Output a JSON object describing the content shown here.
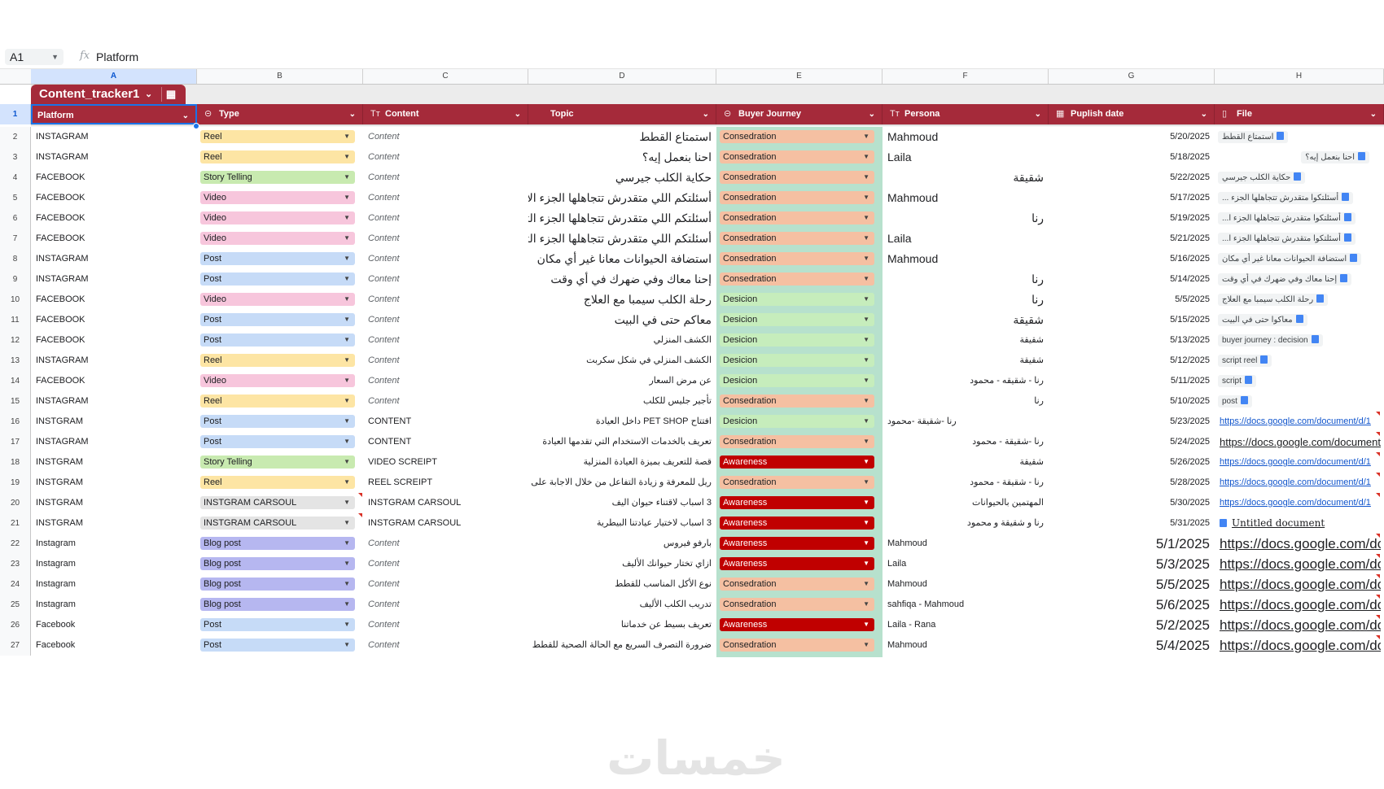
{
  "formula_bar": {
    "cell_ref": "A1",
    "fx": "fx",
    "value": "Platform"
  },
  "columns": [
    "A",
    "B",
    "C",
    "D",
    "E",
    "F",
    "G",
    "H"
  ],
  "table": {
    "name": "Content_tracker1"
  },
  "headers": [
    {
      "label": "Platform",
      "icon": ""
    },
    {
      "label": "Type",
      "icon": "⊝"
    },
    {
      "label": "Content",
      "icon": "Tт"
    },
    {
      "label": "Topic",
      "icon": ""
    },
    {
      "label": "Buyer Journey",
      "icon": "⊝"
    },
    {
      "label": "Persona",
      "icon": "Tт"
    },
    {
      "label": "Puplish date",
      "icon": "▦"
    },
    {
      "label": "File",
      "icon": "▯"
    }
  ],
  "chip_colors": {
    "Reel": "#fde5a4",
    "Story Telling": "#c8eab0",
    "Video": "#f7c6dc",
    "Post": "#c6dbf7",
    "INSTGRAM CARSOUL": "#e4e4e4",
    "Blog post": "#b6b7f0",
    "Consedration": "#f5c0a2",
    "Desicion": "#c6edbc",
    "Awareness": "#c00000"
  },
  "rows": [
    {
      "n": "2",
      "platform": "INSTAGRAM",
      "type": "Reel",
      "content": "Content",
      "topic": "استمتاع القطط",
      "journey": "Consedration",
      "persona": "Mahmoud",
      "persona_align": "left",
      "persona_size": "big",
      "date": "5/20/2025",
      "file": "استمتاع القطط",
      "file_kind": "chip"
    },
    {
      "n": "3",
      "platform": "INSTAGRAM",
      "type": "Reel",
      "content": "Content",
      "topic": "احنا بنعمل إيه؟",
      "journey": "Consedration",
      "persona": "Laila",
      "persona_align": "left",
      "persona_size": "big",
      "date": "5/18/2025",
      "file": "احنا بنعمل إيه؟",
      "file_kind": "chip-right"
    },
    {
      "n": "4",
      "platform": "FACEBOOK",
      "type": "Story Telling",
      "content": "Content",
      "topic": "حكاية الكلب جيرسي",
      "journey": "Consedration",
      "persona": "شقيقة",
      "persona_align": "right",
      "persona_size": "big",
      "date": "5/22/2025",
      "file": "حكاية الكلب جيرسي",
      "file_kind": "chip"
    },
    {
      "n": "5",
      "platform": "FACEBOOK",
      "type": "Video",
      "content": "Content",
      "topic": "أسئلتكم اللي متقدرش تتجاهلها الجزء الأول",
      "journey": "Consedration",
      "persona": "Mahmoud",
      "persona_align": "left",
      "persona_size": "big",
      "date": "5/17/2025",
      "file": "أسئلتكوا متقدرش تتجاهلها الجزء ...",
      "file_kind": "chip"
    },
    {
      "n": "6",
      "platform": "FACEBOOK",
      "type": "Video",
      "content": "Content",
      "topic": "أسئلتكم اللي متقدرش تتجاهلها الجزء الثاني",
      "journey": "Consedration",
      "persona": "رنا",
      "persona_align": "right",
      "persona_size": "big",
      "date": "5/19/2025",
      "file": "أسئلتكوا متقدرش تتجاهلها الجزء ا...",
      "file_kind": "chip"
    },
    {
      "n": "7",
      "platform": "FACEBOOK",
      "type": "Video",
      "content": "Content",
      "topic": "أسئلتكم اللي متقدرش تتجاهلها الجزء الثالث",
      "journey": "Consedration",
      "persona": "Laila",
      "persona_align": "left",
      "persona_size": "big",
      "date": "5/21/2025",
      "file": "أسئلتكوا متقدرش تتجاهلها الجزء ا...",
      "file_kind": "chip"
    },
    {
      "n": "8",
      "platform": "INSTAGRAM",
      "type": "Post",
      "content": "Content",
      "topic": "استضافة الحيوانات معانا غير أي مكان",
      "journey": "Consedration",
      "persona": "Mahmoud",
      "persona_align": "left",
      "persona_size": "big",
      "date": "5/16/2025",
      "file": "استضافة الحيوانات معانا غير أي مكان",
      "file_kind": "chip"
    },
    {
      "n": "9",
      "platform": "INSTAGRAM",
      "type": "Post",
      "content": "Content",
      "topic": "إحنا معاك وفي ضهرك في أي وقت",
      "journey": "Consedration",
      "persona": "رنا",
      "persona_align": "right",
      "persona_size": "big",
      "date": "5/14/2025",
      "file": "إحنا معاك وفي ضهرك في أي وقت",
      "file_kind": "chip"
    },
    {
      "n": "10",
      "platform": "FACEBOOK",
      "type": "Video",
      "content": "Content",
      "topic": "رحلة الكلب سيمبا مع العلاج",
      "journey": "Desicion",
      "persona": "رنا",
      "persona_align": "right",
      "persona_size": "big",
      "date": "5/5/2025",
      "file": "رحلة الكلب سيمبا مع العلاج",
      "file_kind": "chip"
    },
    {
      "n": "11",
      "platform": "FACEBOOK",
      "type": "Post",
      "content": "Content",
      "topic": "معاكم حتى في البيت",
      "journey": "Desicion",
      "persona": "شقيقة",
      "persona_align": "right",
      "persona_size": "big",
      "date": "5/15/2025",
      "file": "معاكوا حتى في البيت",
      "file_kind": "chip"
    },
    {
      "n": "12",
      "platform": "FACEBOOK",
      "type": "Post",
      "content": "Content",
      "topic": "الكشف المنزلي",
      "journey": "Desicion",
      "persona": "شقيقة",
      "persona_align": "right",
      "persona_size": "small",
      "date": "5/13/2025",
      "file": "buyer journey : decision",
      "file_kind": "chip"
    },
    {
      "n": "13",
      "platform": "INSTAGRAM",
      "type": "Reel",
      "content": "Content",
      "topic": "الكشف المنزلي في شكل سكربت",
      "journey": "Desicion",
      "persona": "شقيقة",
      "persona_align": "right",
      "persona_size": "small",
      "date": "5/12/2025",
      "file": "script reel",
      "file_kind": "chip"
    },
    {
      "n": "14",
      "platform": "FACEBOOK",
      "type": "Video",
      "content": "Content",
      "topic": "عن مرض السعار",
      "journey": "Desicion",
      "persona": "رنا - شقيقه - محمود",
      "persona_align": "right",
      "persona_size": "small",
      "date": "5/11/2025",
      "file": "script",
      "file_kind": "chip"
    },
    {
      "n": "15",
      "platform": "INSTAGRAM",
      "type": "Reel",
      "content": "Content",
      "topic": "تأجير جليس للكلب",
      "journey": "Consedration",
      "persona": "رنا",
      "persona_align": "right",
      "persona_size": "small",
      "date": "5/10/2025",
      "file": "post",
      "file_kind": "chip"
    },
    {
      "n": "16",
      "platform": "INSTGRAM",
      "type": "Post",
      "content": "CONTENT",
      "topic": "افتتاح PET SHOP داخل العيادة",
      "journey": "Desicion",
      "persona": "رنا -شقيقة -محمود",
      "persona_align": "left",
      "persona_size": "small",
      "date": "5/23/2025",
      "file": "https://docs.google.com/document/d/1",
      "file_kind": "link"
    },
    {
      "n": "17",
      "platform": "INSTAGRAM",
      "type": "Post",
      "content": "CONTENT",
      "topic": "تعريف بالخدمات الاستخدام التي تقدمها العيادة",
      "journey": "Consedration",
      "persona": "رنا -شقيقة - محمود",
      "persona_align": "right",
      "persona_size": "small",
      "date": "5/24/2025",
      "file": "https://docs.google.com/document/d/",
      "file_kind": "link-bold"
    },
    {
      "n": "18",
      "platform": "INSTGRAM",
      "type": "Story Telling",
      "content": "VIDEO SCREIPT",
      "topic": "قصة للتعريف بميزة العيادة المنزلية",
      "journey": "Awareness",
      "persona": "شقيقة",
      "persona_align": "right",
      "persona_size": "small",
      "date": "5/26/2025",
      "file": "https://docs.google.com/document/d/1",
      "file_kind": "link"
    },
    {
      "n": "19",
      "platform": "INSTGRAM",
      "type": "Reel",
      "content": "REEL SCREIPT",
      "topic": "ريل للمعرفة و زيادة التفاعل من خلال الاجابة على ا",
      "journey": "Consedration",
      "persona": "رنا - شقيقة - محمود",
      "persona_align": "right",
      "persona_size": "small",
      "date": "5/28/2025",
      "file": "https://docs.google.com/document/d/1",
      "file_kind": "link"
    },
    {
      "n": "20",
      "platform": "INSTGRAM",
      "type": "INSTGRAM CARSOUL",
      "content": "INSTGRAM CARSOUL",
      "topic": "3 اسباب لاقتناء حيوان اليف",
      "journey": "Awareness",
      "persona": "المهتمين بالحيوانات",
      "persona_align": "right",
      "persona_size": "small",
      "date": "5/30/2025",
      "file": "https://docs.google.com/document/d/1",
      "file_kind": "link"
    },
    {
      "n": "21",
      "platform": "INSTGRAM",
      "type": "INSTGRAM CARSOUL",
      "content": "INSTGRAM CARSOUL",
      "topic": "3 اسباب لاختيار عيادتنا البيطرية",
      "journey": "Awareness",
      "persona": "رنا و شقيقة و محمود",
      "persona_align": "right",
      "persona_size": "small",
      "date": "5/31/2025",
      "file": "Untitled document",
      "file_kind": "doc"
    },
    {
      "n": "22",
      "platform": "Instagram",
      "type": "Blog post",
      "content": "Content",
      "topic": "بارفو فيروس",
      "journey": "Awareness",
      "persona": "Mahmoud",
      "persona_align": "left",
      "persona_size": "small",
      "date": "5/1/2025",
      "file": "https://docs.google.com/document/d/",
      "file_kind": "link-huge"
    },
    {
      "n": "23",
      "platform": "Instagram",
      "type": "Blog post",
      "content": "Content",
      "topic": "ازاي تختار حيوانك الأليف",
      "journey": "Awareness",
      "persona": "Laila",
      "persona_align": "left",
      "persona_size": "small",
      "date": "5/3/2025",
      "file": "https://docs.google.com/document/d/",
      "file_kind": "link-huge"
    },
    {
      "n": "24",
      "platform": "Instagram",
      "type": "Blog post",
      "content": "Content",
      "topic": "نوع الأكل المناسب للقطط",
      "journey": "Consedration",
      "persona": "Mahmoud",
      "persona_align": "left",
      "persona_size": "small",
      "date": "5/5/2025",
      "file": "https://docs.google.com/document/d/",
      "file_kind": "link-huge"
    },
    {
      "n": "25",
      "platform": "Instagram",
      "type": "Blog post",
      "content": "Content",
      "topic": "تدريب الكلب الأليف",
      "journey": "Consedration",
      "persona": "sahfiqa - Mahmoud",
      "persona_align": "left",
      "persona_size": "small",
      "date": "5/6/2025",
      "file": "https://docs.google.com/document/d/",
      "file_kind": "link-huge"
    },
    {
      "n": "26",
      "platform": "Facebook",
      "type": "Post",
      "content": "Content",
      "topic": "تعريف بسيط عن خدماتنا",
      "journey": "Awareness",
      "persona": "Laila - Rana",
      "persona_align": "left",
      "persona_size": "small",
      "date": "5/2/2025",
      "file": "https://docs.google.com/document/d/",
      "file_kind": "link-huge"
    },
    {
      "n": "27",
      "platform": "Facebook",
      "type": "Post",
      "content": "Content",
      "topic": "ضرورة التصرف السريع مع الحالة الصحية للقطط",
      "journey": "Consedration",
      "persona": "Mahmoud",
      "persona_align": "left",
      "persona_size": "small",
      "date": "5/4/2025",
      "file": "https://docs.google.com/document/d/",
      "file_kind": "link-huge"
    }
  ],
  "watermark": "خمسات"
}
